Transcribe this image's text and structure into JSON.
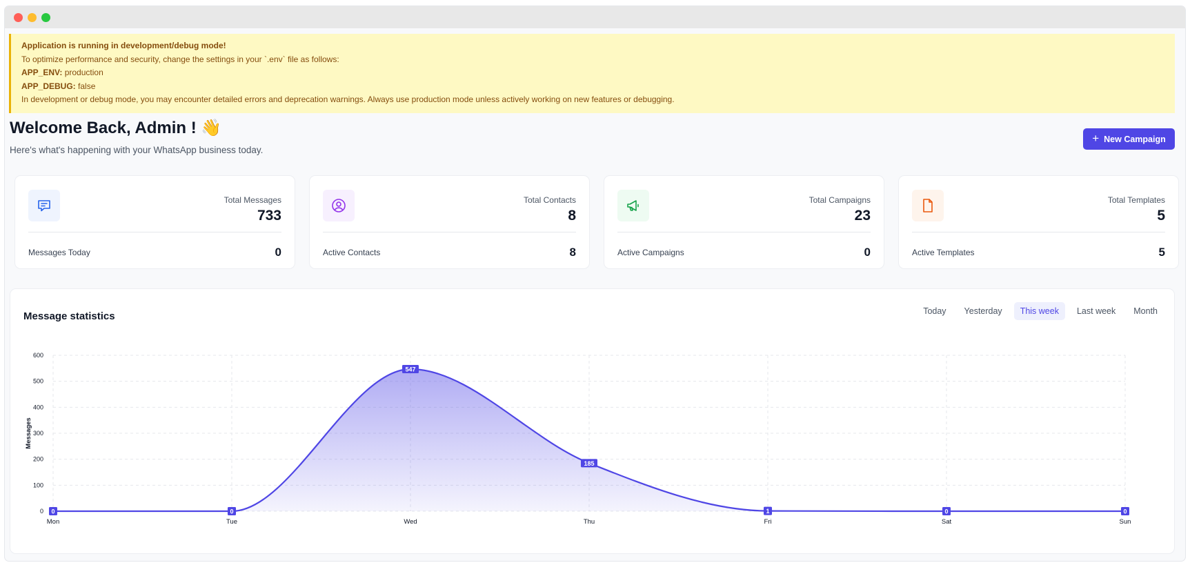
{
  "alert": {
    "title": "Application is running in development/debug mode!",
    "line1": "To optimize performance and security, change the settings in your `.env` file as follows:",
    "env_key": "APP_ENV:",
    "env_value": "production",
    "debug_key": "APP_DEBUG:",
    "debug_value": "false",
    "line4": "In development or debug mode, you may encounter detailed errors and deprecation warnings. Always use production mode unless actively working on new features or debugging."
  },
  "header": {
    "welcome": "Welcome Back, Admin ! 👋",
    "subtitle": "Here's what's happening with your WhatsApp business today.",
    "new_campaign": "New Campaign"
  },
  "cards": [
    {
      "label": "Total Messages",
      "value": "733",
      "sublabel": "Messages Today",
      "subvalue": "0",
      "icon": "chat-icon",
      "color": "#2563eb",
      "bg": "#eff4fe"
    },
    {
      "label": "Total Contacts",
      "value": "8",
      "sublabel": "Active Contacts",
      "subvalue": "8",
      "icon": "user-circle-icon",
      "color": "#9333ea",
      "bg": "#f7f0fe"
    },
    {
      "label": "Total Campaigns",
      "value": "23",
      "sublabel": "Active Campaigns",
      "subvalue": "0",
      "icon": "megaphone-icon",
      "color": "#16a34a",
      "bg": "#eefbf2"
    },
    {
      "label": "Total Templates",
      "value": "5",
      "sublabel": "Active Templates",
      "subvalue": "5",
      "icon": "document-icon",
      "color": "#ea580c",
      "bg": "#fef4ec"
    }
  ],
  "stats": {
    "title": "Message statistics",
    "periods": [
      "Today",
      "Yesterday",
      "This week",
      "Last week",
      "Month"
    ],
    "active_period": "This week"
  },
  "chart_data": {
    "type": "area",
    "categories": [
      "Mon",
      "Tue",
      "Wed",
      "Thu",
      "Fri",
      "Sat",
      "Sun"
    ],
    "series": [
      {
        "values": [
          0,
          0,
          547,
          185,
          1,
          0,
          0
        ]
      }
    ],
    "ylabel": "Messages",
    "xlabel": "",
    "ylim": [
      0,
      600
    ],
    "yticks": [
      0,
      100,
      200,
      300,
      400,
      500,
      600
    ],
    "grid": true,
    "color": "#4f46e5"
  }
}
